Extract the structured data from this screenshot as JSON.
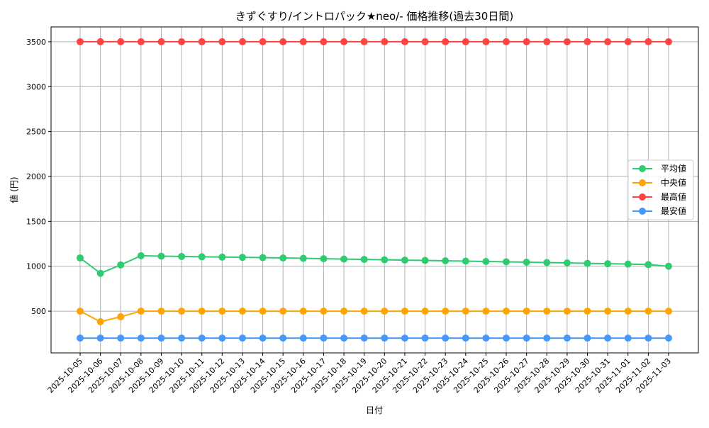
{
  "chart_data": {
    "type": "line",
    "title": "きずぐすり/イントロパック★neo/- 価格推移(過去30日間)",
    "xlabel": "日付",
    "ylabel": "値 (円)",
    "ylim": [
      35,
      3665
    ],
    "yticks": [
      500,
      1000,
      1500,
      2000,
      2500,
      3000,
      3500
    ],
    "grid": true,
    "legend_position": "center right",
    "x": [
      "2025-10-05",
      "2025-10-06",
      "2025-10-07",
      "2025-10-08",
      "2025-10-09",
      "2025-10-10",
      "2025-10-11",
      "2025-10-12",
      "2025-10-13",
      "2025-10-14",
      "2025-10-15",
      "2025-10-16",
      "2025-10-17",
      "2025-10-18",
      "2025-10-19",
      "2025-10-20",
      "2025-10-21",
      "2025-10-22",
      "2025-10-23",
      "2025-10-24",
      "2025-10-25",
      "2025-10-26",
      "2025-10-27",
      "2025-10-28",
      "2025-10-29",
      "2025-10-30",
      "2025-10-31",
      "2025-11-01",
      "2025-11-02",
      "2025-11-03"
    ],
    "series": [
      {
        "name": "平均値",
        "color": "#2ecc71",
        "values": [
          1092,
          921,
          1015,
          1117,
          1112,
          1109,
          1105,
          1102,
          1099,
          1096,
          1092,
          1088,
          1084,
          1080,
          1076,
          1072,
          1068,
          1065,
          1061,
          1057,
          1053,
          1049,
          1045,
          1041,
          1037,
          1032,
          1028,
          1024,
          1018,
          1000
        ]
      },
      {
        "name": "中央値",
        "color": "#ffa500",
        "values": [
          500,
          382,
          437,
          500,
          500,
          500,
          500,
          500,
          500,
          500,
          500,
          500,
          500,
          500,
          500,
          500,
          500,
          500,
          500,
          500,
          500,
          500,
          500,
          500,
          500,
          500,
          500,
          500,
          500,
          500
        ]
      },
      {
        "name": "最高値",
        "color": "#ff4444",
        "values": [
          3500,
          3500,
          3500,
          3500,
          3500,
          3500,
          3500,
          3500,
          3500,
          3500,
          3500,
          3500,
          3500,
          3500,
          3500,
          3500,
          3500,
          3500,
          3500,
          3500,
          3500,
          3500,
          3500,
          3500,
          3500,
          3500,
          3500,
          3500,
          3500,
          3500
        ]
      },
      {
        "name": "最安値",
        "color": "#4499ff",
        "values": [
          200,
          200,
          200,
          200,
          200,
          200,
          200,
          200,
          200,
          200,
          200,
          200,
          200,
          200,
          200,
          200,
          200,
          200,
          200,
          200,
          200,
          200,
          200,
          200,
          200,
          200,
          200,
          200,
          200,
          200
        ]
      }
    ]
  }
}
